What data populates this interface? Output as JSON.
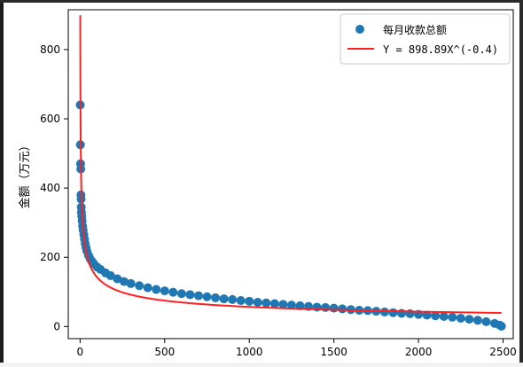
{
  "chart_data": {
    "type": "scatter",
    "title": "",
    "xlabel": "",
    "ylabel": "金额（万元）",
    "xlim": [
      -70,
      2560
    ],
    "ylim": [
      -35,
      915
    ],
    "x_ticks": [
      0,
      500,
      1000,
      1500,
      2000,
      2500
    ],
    "x_tick_labels": [
      "0",
      "500",
      "1000",
      "1500",
      "2000",
      "2500"
    ],
    "y_ticks": [
      0,
      200,
      400,
      600,
      800
    ],
    "y_tick_labels": [
      "0",
      "200",
      "400",
      "600",
      "800"
    ],
    "grid": false,
    "legend": {
      "placement": "top-right",
      "entries": [
        "每月收款总额",
        "Y = 898.89X^(-0.4)"
      ]
    },
    "series": [
      {
        "name": "每月收款总额",
        "kind": "scatter",
        "color": "#1f77b4",
        "points": [
          [
            1,
            640
          ],
          [
            2,
            525
          ],
          [
            3,
            470
          ],
          [
            4,
            455
          ],
          [
            5,
            380
          ],
          [
            6,
            368
          ],
          [
            7,
            345
          ],
          [
            8,
            330
          ],
          [
            10,
            318
          ],
          [
            12,
            305
          ],
          [
            15,
            290
          ],
          [
            18,
            278
          ],
          [
            22,
            265
          ],
          [
            26,
            252
          ],
          [
            30,
            240
          ],
          [
            35,
            228
          ],
          [
            40,
            218
          ],
          [
            50,
            205
          ],
          [
            60,
            195
          ],
          [
            70,
            188
          ],
          [
            80,
            182
          ],
          [
            100,
            172
          ],
          [
            120,
            165
          ],
          [
            150,
            155
          ],
          [
            180,
            147
          ],
          [
            220,
            138
          ],
          [
            260,
            130
          ],
          [
            300,
            124
          ],
          [
            350,
            118
          ],
          [
            400,
            112
          ],
          [
            450,
            107
          ],
          [
            500,
            103
          ],
          [
            550,
            99
          ],
          [
            600,
            95
          ],
          [
            650,
            92
          ],
          [
            700,
            89
          ],
          [
            750,
            86
          ],
          [
            800,
            83
          ],
          [
            850,
            80
          ],
          [
            900,
            78
          ],
          [
            950,
            75
          ],
          [
            1000,
            73
          ],
          [
            1050,
            70
          ],
          [
            1100,
            68
          ],
          [
            1150,
            66
          ],
          [
            1200,
            64
          ],
          [
            1250,
            62
          ],
          [
            1300,
            60
          ],
          [
            1350,
            58
          ],
          [
            1400,
            56
          ],
          [
            1450,
            55
          ],
          [
            1500,
            53
          ],
          [
            1550,
            51
          ],
          [
            1600,
            49
          ],
          [
            1650,
            47
          ],
          [
            1700,
            46
          ],
          [
            1750,
            44
          ],
          [
            1800,
            42
          ],
          [
            1850,
            40
          ],
          [
            1900,
            38
          ],
          [
            1950,
            37
          ],
          [
            2000,
            35
          ],
          [
            2050,
            33
          ],
          [
            2100,
            31
          ],
          [
            2150,
            29
          ],
          [
            2200,
            27
          ],
          [
            2250,
            24
          ],
          [
            2300,
            21
          ],
          [
            2350,
            18
          ],
          [
            2400,
            14
          ],
          [
            2450,
            9
          ],
          [
            2480,
            4
          ],
          [
            2490,
            1
          ]
        ]
      },
      {
        "name": "Y = 898.89X^(-0.4)",
        "kind": "line",
        "color": "#ff2020",
        "coefficient": 898.89,
        "exponent": -0.4,
        "x_range": [
          1,
          2490
        ]
      }
    ]
  }
}
